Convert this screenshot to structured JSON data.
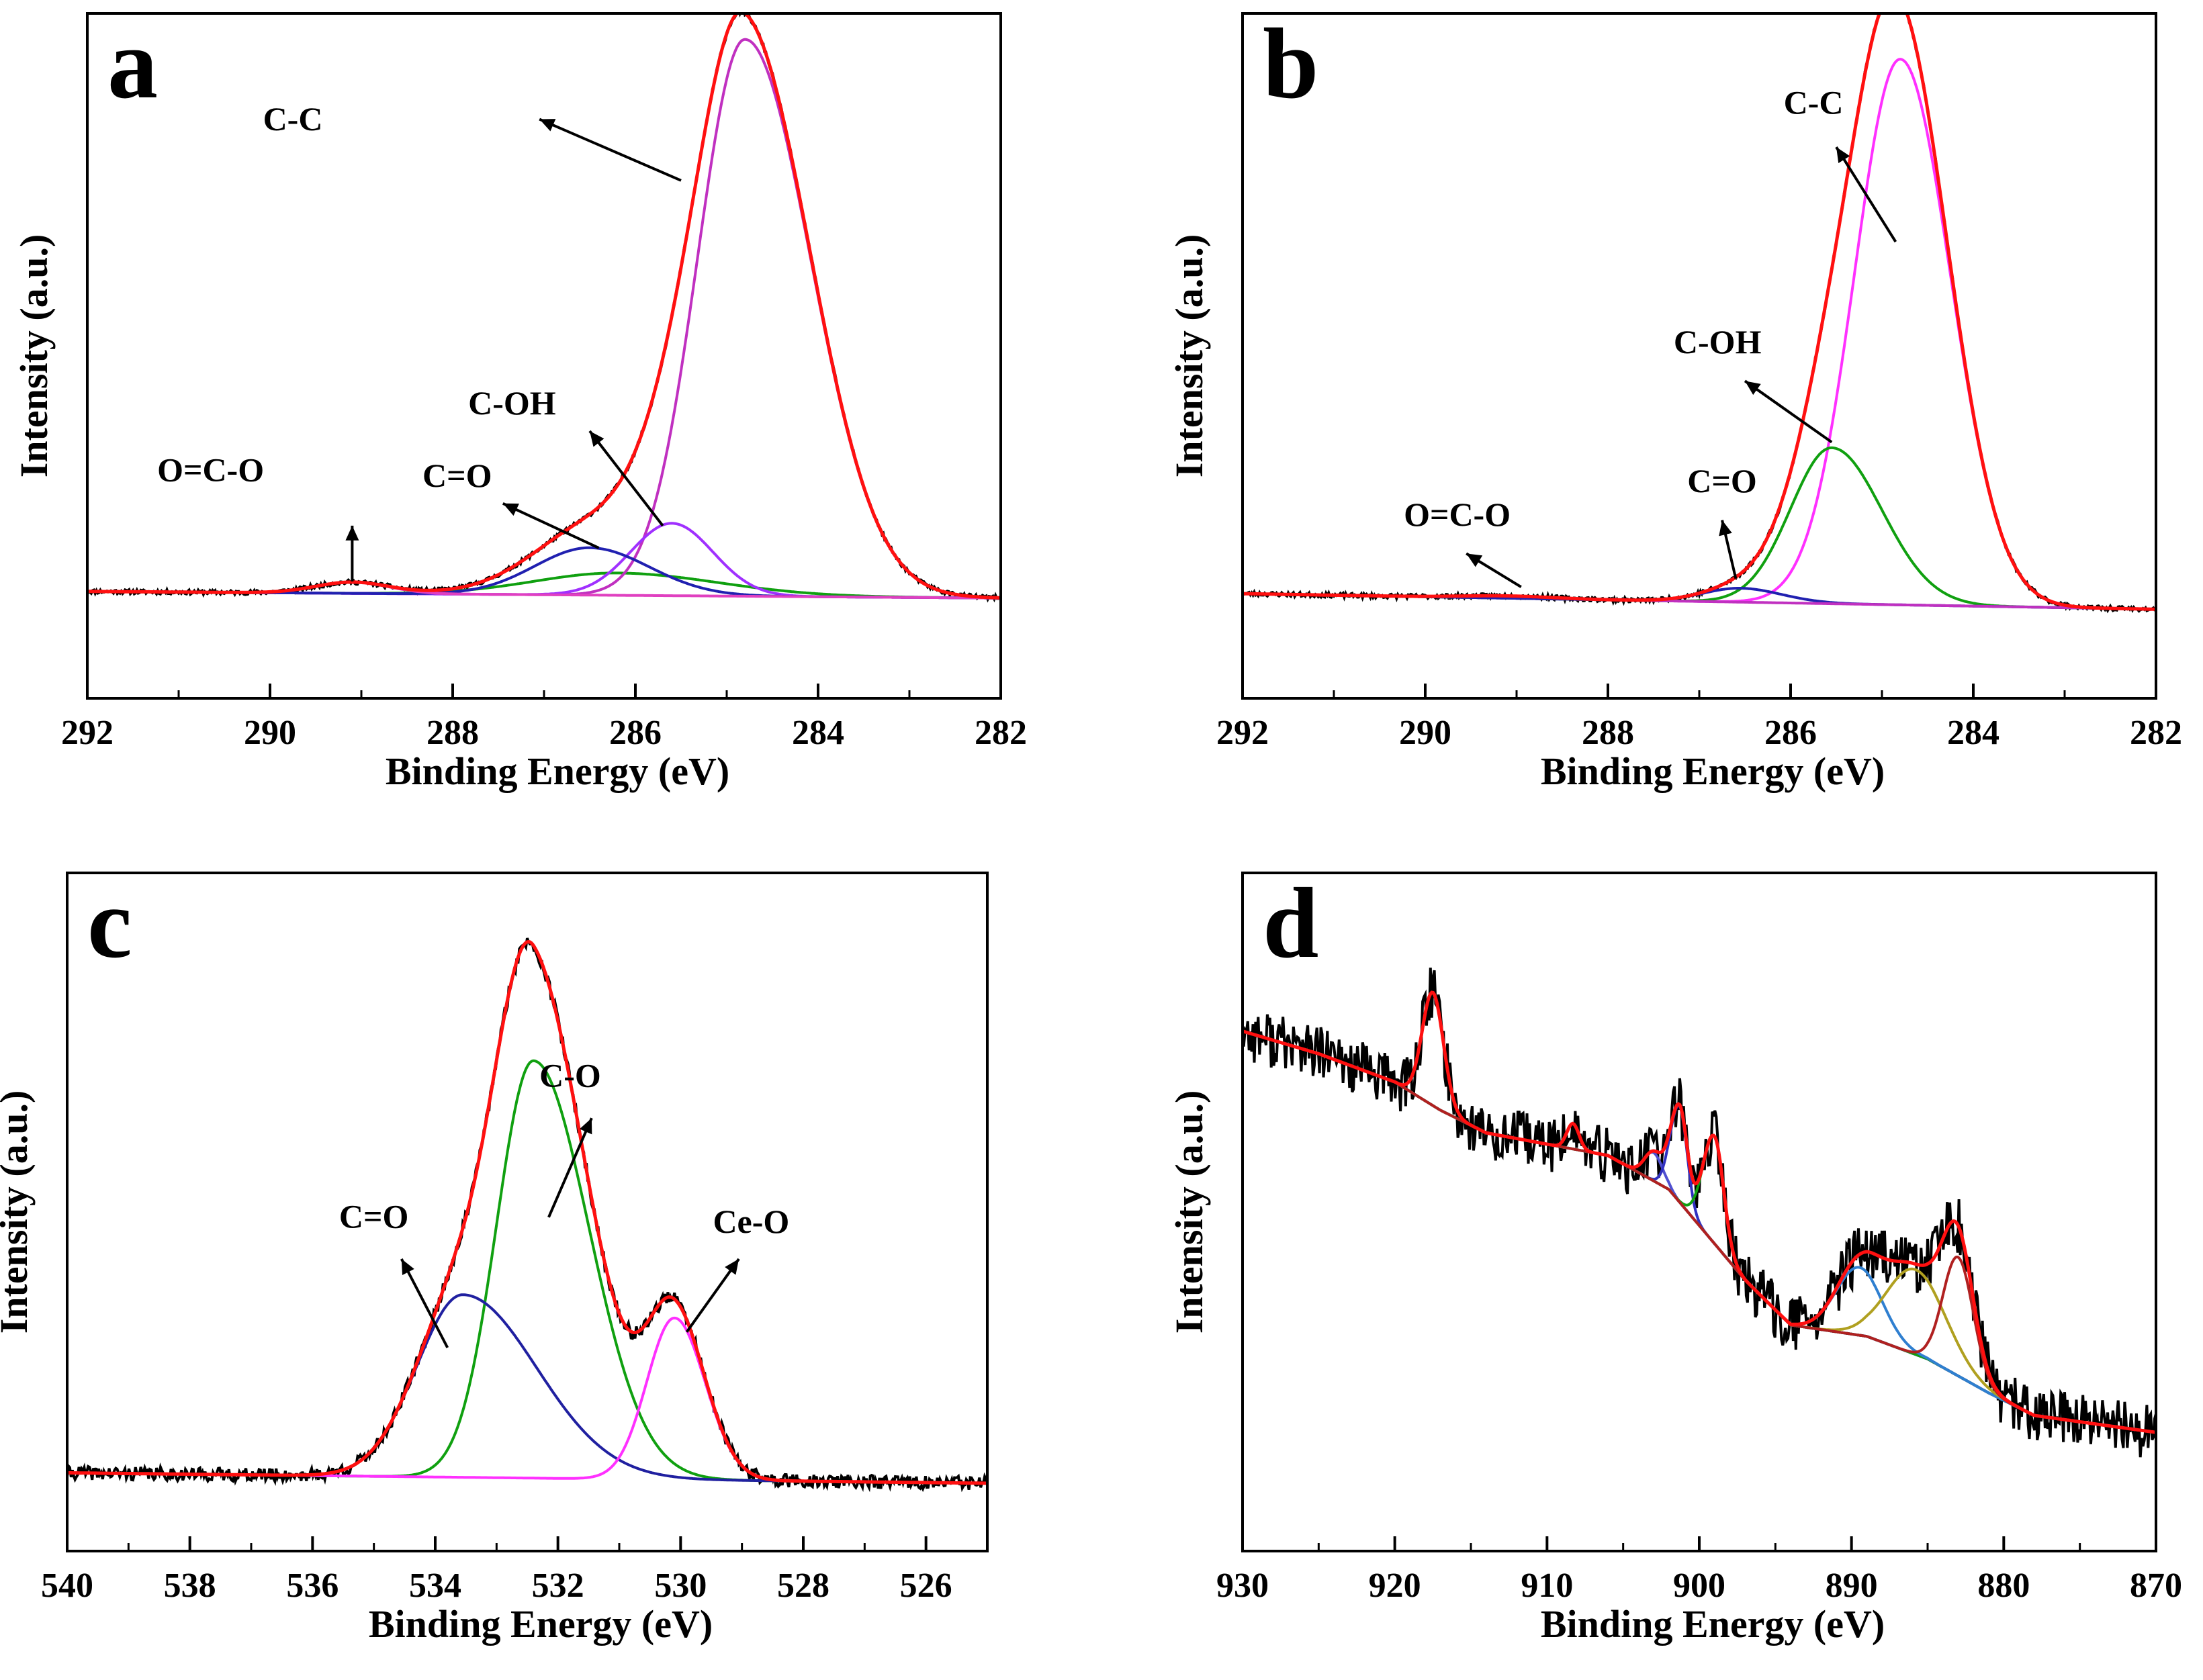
{
  "figure": {
    "caption": ""
  },
  "chart_data": [
    {
      "type": "line",
      "panel": "a",
      "title": "",
      "xlabel": "Binding Energy (eV)",
      "ylabel": "Intensity (a.u.)",
      "xlim": [
        292,
        282
      ],
      "xreversed": true,
      "ylim": [
        -0.18,
        1.05
      ],
      "xticks": [
        292,
        290,
        288,
        286,
        284,
        282
      ],
      "baseline": {
        "left": 0.012,
        "right": 0.0
      },
      "components": [
        {
          "name": "C-C",
          "color": "#c030c0",
          "center": 284.8,
          "height": 1.0,
          "sigma_left": 0.72,
          "sigma_right": 0.52,
          "label_text": "C-C",
          "label_x": 289.75,
          "label_y": 0.84,
          "arrow_from": [
            287.05,
            0.86
          ],
          "arrow_to": [
            285.5,
            0.75
          ]
        },
        {
          "name": "C-OH",
          "color": "#a030ff",
          "center": 285.6,
          "height": 0.13,
          "sigma_left": 0.45,
          "sigma_right": 0.45,
          "label_text": "C-OH",
          "label_x": 287.35,
          "label_y": 0.33,
          "arrow_from": [
            286.5,
            0.3
          ],
          "arrow_to": [
            285.7,
            0.13
          ]
        },
        {
          "name": "C=O",
          "color": "#2020b0",
          "center": 286.5,
          "height": 0.085,
          "sigma_left": 0.65,
          "sigma_right": 0.6,
          "label_text": "C=O",
          "label_x": 287.95,
          "label_y": 0.2,
          "arrow_from": [
            287.45,
            0.17
          ],
          "arrow_to": [
            286.4,
            0.09
          ]
        },
        {
          "name": "O=C-O",
          "color": "#e040c0",
          "center": 289.1,
          "height": 0.02,
          "sigma_left": 0.4,
          "sigma_right": 0.4,
          "label_text": "O=C-O",
          "label_x": 290.65,
          "label_y": 0.21,
          "arrow_from": [
            289.1,
            0.13
          ],
          "arrow_to": [
            289.1,
            0.03
          ]
        }
      ],
      "secondary_components": [
        {
          "name": "background-green",
          "color": "#10a010",
          "center": 286.2,
          "height": 0.04,
          "sigma_left": 1.1,
          "sigma_right": 0.9
        }
      ],
      "envelope_color": "#ff1010",
      "raw_color": "#000000",
      "noise": 0.004,
      "seed": 11
    },
    {
      "type": "line",
      "panel": "b",
      "title": "",
      "xlabel": "Binding Energy (eV)",
      "ylabel": "Intensity (a.u.)",
      "xlim": [
        292,
        282
      ],
      "xreversed": true,
      "ylim": [
        -0.18,
        1.05
      ],
      "xticks": [
        292,
        290,
        288,
        286,
        284,
        282
      ],
      "baseline": {
        "left": 0.008,
        "right": -0.02
      },
      "components": [
        {
          "name": "C-C",
          "color": "#ff30ff",
          "center": 284.8,
          "height": 0.98,
          "sigma_left": 0.55,
          "sigma_right": 0.5,
          "label_text": "C-C",
          "label_x": 285.75,
          "label_y": 0.87,
          "arrow_from": [
            285.5,
            0.81
          ],
          "arrow_to": [
            284.85,
            0.64
          ]
        },
        {
          "name": "C-OH",
          "color": "#10a010",
          "center": 285.55,
          "height": 0.28,
          "sigma_left": 0.55,
          "sigma_right": 0.45,
          "label_text": "C-OH",
          "label_x": 286.8,
          "label_y": 0.44,
          "arrow_from": [
            286.5,
            0.39
          ],
          "arrow_to": [
            285.55,
            0.28
          ]
        },
        {
          "name": "C=O",
          "color": "#2020b0",
          "center": 286.55,
          "height": 0.025,
          "sigma_left": 0.45,
          "sigma_right": 0.4,
          "label_text": "C=O",
          "label_x": 286.75,
          "label_y": 0.19,
          "arrow_from": [
            286.75,
            0.14
          ],
          "arrow_to": [
            286.6,
            0.035
          ]
        },
        {
          "name": "O=C-O",
          "color": "#c030c0",
          "center": 289.1,
          "height": 0.004,
          "sigma_left": 0.5,
          "sigma_right": 0.5,
          "label_text": "O=C-O",
          "label_x": 289.65,
          "label_y": 0.13,
          "arrow_from": [
            289.55,
            0.08
          ],
          "arrow_to": [
            288.95,
            0.02
          ]
        }
      ],
      "secondary_components": [],
      "envelope_color": "#ff1010",
      "raw_color": "#000000",
      "noise": 0.004,
      "seed": 23
    },
    {
      "type": "line",
      "panel": "c",
      "title": "",
      "xlabel": "Binding Energy (eV)",
      "ylabel": "Intensity (a.u.)",
      "xlim": [
        540,
        525
      ],
      "xreversed": true,
      "ylim": [
        -0.15,
        1.15
      ],
      "xticks": [
        540,
        538,
        536,
        534,
        532,
        530,
        528,
        526
      ],
      "baseline": {
        "left": 0.0,
        "right": -0.02
      },
      "components": [
        {
          "name": "C-O",
          "color": "#10a010",
          "center": 532.4,
          "height": 0.8,
          "sigma_left": 0.9,
          "sigma_right": 0.6,
          "label_text": "C-O",
          "label_x": 531.8,
          "label_y": 0.74,
          "arrow_from": [
            531.45,
            0.68
          ],
          "arrow_to": [
            532.15,
            0.49
          ]
        },
        {
          "name": "C=O",
          "color": "#2020a0",
          "center": 533.55,
          "height": 0.35,
          "sigma_left": 1.2,
          "sigma_right": 0.75,
          "label_text": "C=O",
          "label_x": 535.0,
          "label_y": 0.47,
          "arrow_from": [
            534.55,
            0.41
          ],
          "arrow_to": [
            533.8,
            0.24
          ]
        },
        {
          "name": "Ce-O",
          "color": "#ff30ff",
          "center": 530.1,
          "height": 0.31,
          "sigma_left": 0.5,
          "sigma_right": 0.45,
          "label_text": "Ce-O",
          "label_x": 528.85,
          "label_y": 0.46,
          "arrow_from": [
            529.05,
            0.41
          ],
          "arrow_to": [
            529.9,
            0.27
          ]
        }
      ],
      "secondary_components": [],
      "envelope_color": "#ff1010",
      "raw_color": "#000000",
      "noise": 0.013,
      "seed": 41
    },
    {
      "type": "line",
      "panel": "d",
      "title": "",
      "xlabel": "Binding Energy (eV)",
      "ylabel": "Intensity (a.u.)",
      "xlim": [
        930,
        870
      ],
      "xreversed": true,
      "ylim": [
        -0.08,
        1.12
      ],
      "xticks": [
        930,
        920,
        910,
        900,
        890,
        880,
        870
      ],
      "background_points": [
        [
          930,
          0.84
        ],
        [
          925,
          0.8
        ],
        [
          920,
          0.75
        ],
        [
          917,
          0.7
        ],
        [
          914,
          0.66
        ],
        [
          906,
          0.62
        ],
        [
          902,
          0.56
        ],
        [
          897,
          0.4
        ],
        [
          894,
          0.32
        ],
        [
          889,
          0.3
        ],
        [
          885,
          0.26
        ],
        [
          881,
          0.2
        ],
        [
          878,
          0.16
        ],
        [
          870,
          0.13
        ]
      ],
      "background_color": "#1f6fb4",
      "components": [
        {
          "name": "peak-917",
          "color": "#ff30ff",
          "center": 917.5,
          "height": 0.2,
          "sigma_left": 0.7,
          "sigma_right": 0.7
        },
        {
          "name": "peak-908",
          "color": "#ff30ff",
          "center": 908.3,
          "height": 0.045,
          "sigma_left": 0.4,
          "sigma_right": 0.4
        },
        {
          "name": "peak-903",
          "color": "#5050d0",
          "center": 903.0,
          "height": 0.05,
          "sigma_left": 0.6,
          "sigma_right": 0.6
        },
        {
          "name": "peak-901",
          "color": "#3030c0",
          "center": 901.3,
          "height": 0.17,
          "sigma_left": 0.5,
          "sigma_right": 0.6
        },
        {
          "name": "peak-899",
          "color": "#10a010",
          "center": 899.0,
          "height": 0.19,
          "sigma_left": 0.6,
          "sigma_right": 0.75
        },
        {
          "name": "peak-890",
          "color": "#2f7fd0",
          "center": 889.5,
          "height": 0.12,
          "sigma_left": 1.5,
          "sigma_right": 1.5
        },
        {
          "name": "peak-886",
          "color": "#b0a020",
          "center": 885.8,
          "height": 0.15,
          "sigma_left": 2.0,
          "sigma_right": 1.9
        },
        {
          "name": "peak-883",
          "color": "#b02020",
          "center": 883.0,
          "height": 0.21,
          "sigma_left": 1.0,
          "sigma_right": 1.0
        }
      ],
      "secondary_components": [],
      "envelope_color": "#ff1010",
      "raw_color": "#000000",
      "noise": 0.05,
      "seed": 77
    }
  ]
}
